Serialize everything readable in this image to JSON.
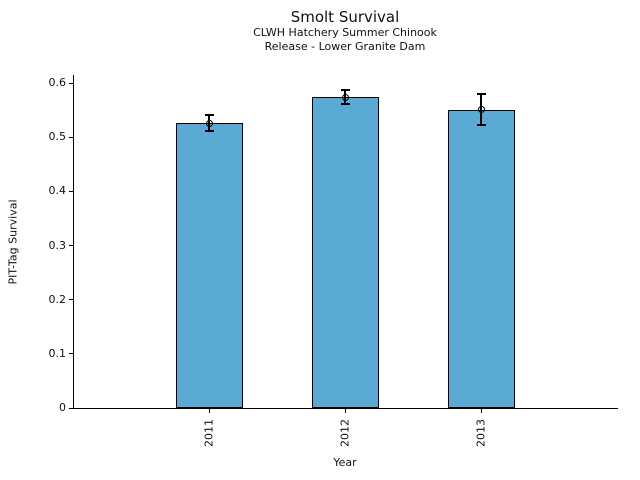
{
  "chart_data": {
    "type": "bar",
    "title": "Smolt Survival",
    "subtitle_line1": "CLWH Hatchery Summer Chinook",
    "subtitle_line2": "Release - Lower Granite Dam",
    "xlabel": "Year",
    "ylabel": "PIT-Tag Survival",
    "categories": [
      "2011",
      "2012",
      "2013"
    ],
    "values": [
      0.526,
      0.574,
      0.551
    ],
    "errors": [
      0.015,
      0.013,
      0.028
    ],
    "ytick_values": [
      0,
      0.1,
      0.2,
      0.3,
      0.4,
      0.5,
      0.6
    ],
    "ytick_labels": [
      "0",
      "0.1",
      "0.2",
      "0.3",
      "0.4",
      "0.5",
      "0.6"
    ],
    "ylim": [
      0,
      0.615
    ],
    "grid": false,
    "legend": null,
    "bar_fill_color": "#5AAAD4",
    "bar_edge_color": "#000000",
    "error_bar_color": "#000000",
    "error_marker": "open-circle"
  }
}
